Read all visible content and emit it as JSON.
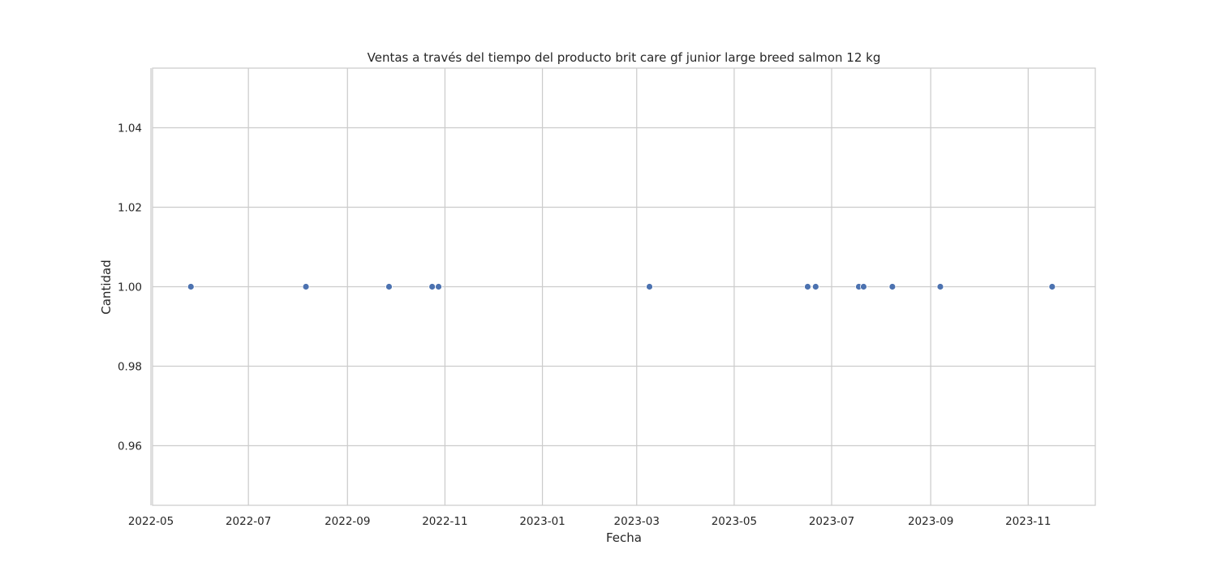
{
  "chart_data": {
    "type": "scatter",
    "title": "Ventas a través del tiempo del producto brit care gf junior large breed salmon  12 kg",
    "xlabel": "Fecha",
    "ylabel": "Cantidad",
    "x_axis_type": "date",
    "xlim": [
      "2022-05-02",
      "2023-12-13"
    ],
    "ylim": [
      0.945,
      1.055
    ],
    "x_ticks": [
      "2022-05-01",
      "2022-07-01",
      "2022-09-01",
      "2022-11-01",
      "2023-01-01",
      "2023-03-01",
      "2023-05-01",
      "2023-07-01",
      "2023-09-01",
      "2023-11-01"
    ],
    "x_tick_labels": [
      "2022-05",
      "2022-07",
      "2022-09",
      "2022-11",
      "2023-01",
      "2023-03",
      "2023-05",
      "2023-07",
      "2023-09",
      "2023-11"
    ],
    "y_ticks": [
      0.96,
      0.98,
      1.0,
      1.02,
      1.04
    ],
    "y_tick_labels": [
      "0.96",
      "0.98",
      "1.00",
      "1.02",
      "1.04"
    ],
    "grid": true,
    "marker_color": "#4c72b0",
    "grid_color": "#cccccc",
    "points": [
      {
        "x": "2022-05-26",
        "y": 1
      },
      {
        "x": "2022-08-06",
        "y": 1
      },
      {
        "x": "2022-09-27",
        "y": 1
      },
      {
        "x": "2022-10-24",
        "y": 1
      },
      {
        "x": "2022-10-28",
        "y": 1
      },
      {
        "x": "2023-03-09",
        "y": 1
      },
      {
        "x": "2023-06-16",
        "y": 1
      },
      {
        "x": "2023-06-21",
        "y": 1
      },
      {
        "x": "2023-07-18",
        "y": 1
      },
      {
        "x": "2023-07-21",
        "y": 1
      },
      {
        "x": "2023-08-08",
        "y": 1
      },
      {
        "x": "2023-09-07",
        "y": 1
      },
      {
        "x": "2023-11-16",
        "y": 1
      }
    ]
  }
}
